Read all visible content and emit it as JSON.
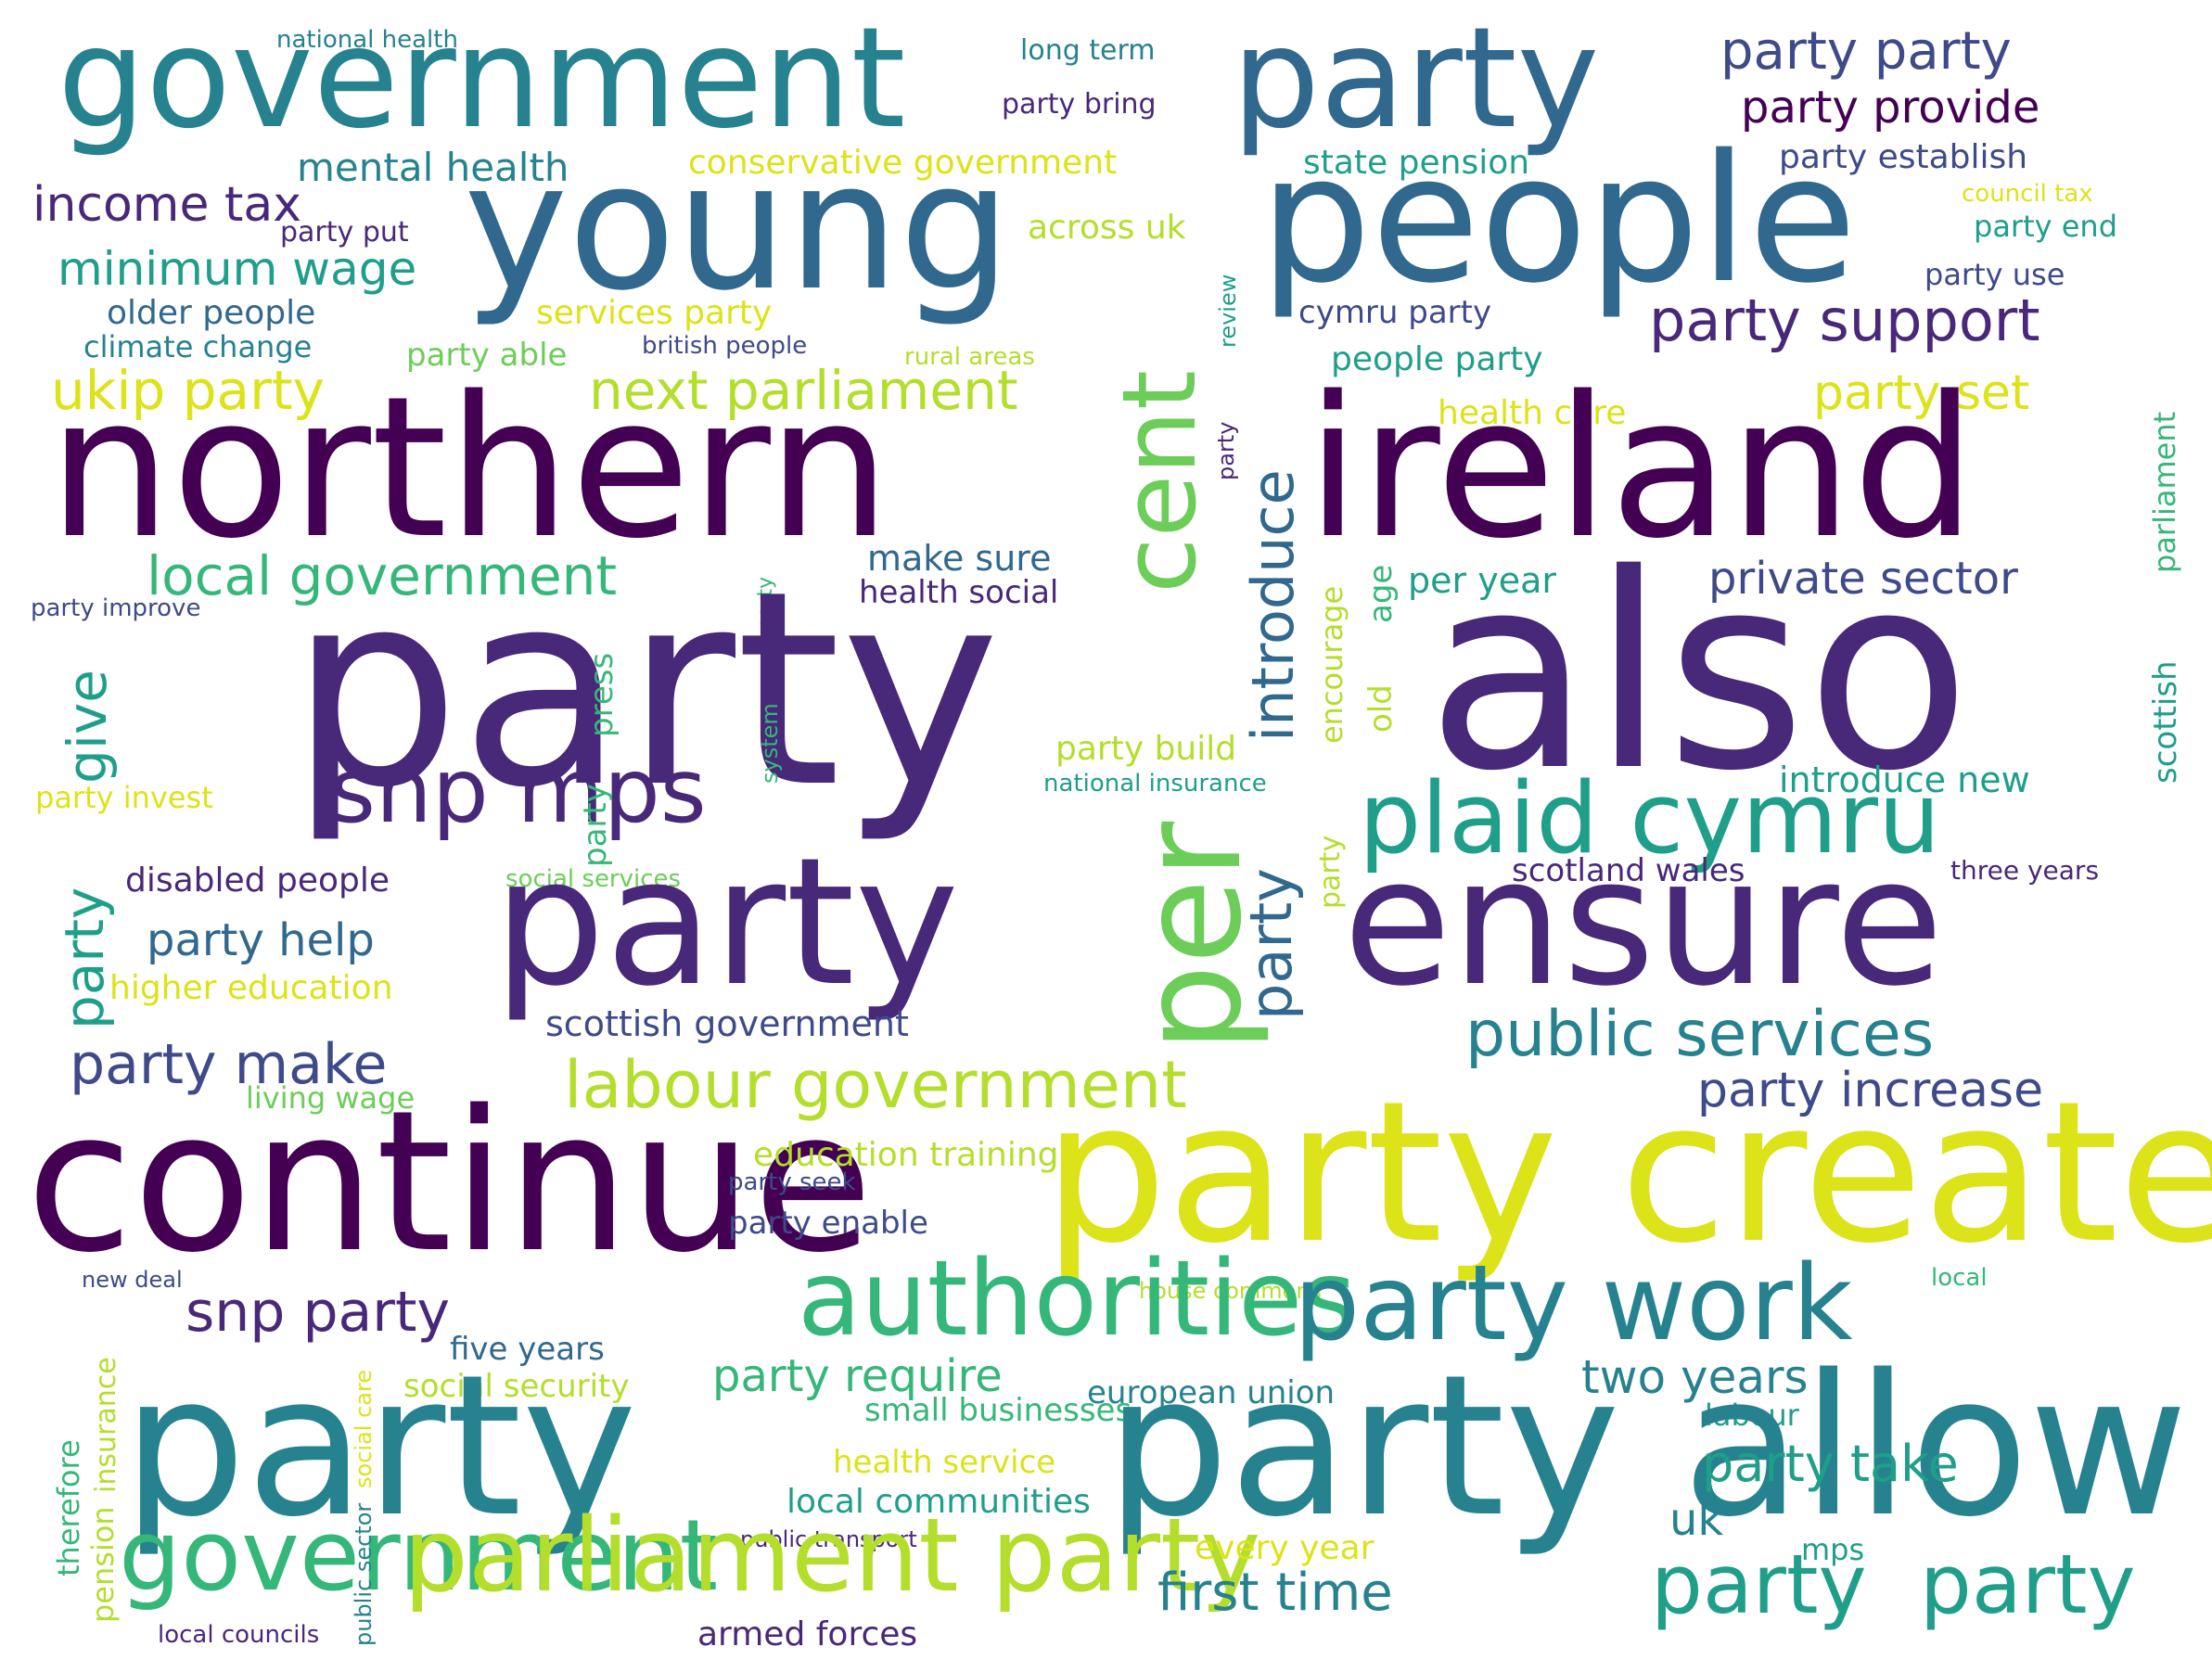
{
  "palette": {
    "c0": "#440154",
    "c1": "#482878",
    "c2": "#3e4a89",
    "c3": "#31688e",
    "c4": "#26828e",
    "c5": "#1f9e89",
    "c6": "#35b779",
    "c7": "#6dcd59",
    "c8": "#b4de2c",
    "c9": "#dce319"
  },
  "words": [
    {
      "id": "w1",
      "text": "national health",
      "color": "c4"
    },
    {
      "id": "w2",
      "text": "government",
      "color": "c4"
    },
    {
      "id": "w3",
      "text": "long term",
      "color": "c4"
    },
    {
      "id": "w4",
      "text": "party",
      "color": "c3"
    },
    {
      "id": "w5",
      "text": "party party",
      "color": "c2"
    },
    {
      "id": "w6",
      "text": "party bring",
      "color": "c1"
    },
    {
      "id": "w7",
      "text": "party provide",
      "color": "c0"
    },
    {
      "id": "w8",
      "text": "young",
      "color": "c3"
    },
    {
      "id": "w9",
      "text": "people",
      "color": "c3"
    },
    {
      "id": "w10",
      "text": "mental health",
      "color": "c4"
    },
    {
      "id": "w11",
      "text": "conservative government",
      "color": "c9"
    },
    {
      "id": "w12",
      "text": "state pension",
      "color": "c5"
    },
    {
      "id": "w13",
      "text": "party establish",
      "color": "c2"
    },
    {
      "id": "w14",
      "text": "income tax",
      "color": "c1"
    },
    {
      "id": "w15",
      "text": "party put",
      "color": "c1"
    },
    {
      "id": "w16",
      "text": "council tax",
      "color": "c9"
    },
    {
      "id": "w17",
      "text": "across uk",
      "color": "c8"
    },
    {
      "id": "w18",
      "text": "party end",
      "color": "c5"
    },
    {
      "id": "w19",
      "text": "minimum wage",
      "color": "c5"
    },
    {
      "id": "w20",
      "text": "cent",
      "color": "c7"
    },
    {
      "id": "w21",
      "text": "review",
      "color": "c5"
    },
    {
      "id": "w22",
      "text": "party use",
      "color": "c2"
    },
    {
      "id": "w23",
      "text": "older people",
      "color": "c3"
    },
    {
      "id": "w24",
      "text": "services party",
      "color": "c9"
    },
    {
      "id": "w25",
      "text": "cymru party",
      "color": "c2"
    },
    {
      "id": "w26",
      "text": "party support",
      "color": "c1"
    },
    {
      "id": "w27",
      "text": "climate change",
      "color": "c4"
    },
    {
      "id": "w28",
      "text": "party able",
      "color": "c7"
    },
    {
      "id": "w29",
      "text": "british people",
      "color": "c2"
    },
    {
      "id": "w30",
      "text": "rural areas",
      "color": "c8"
    },
    {
      "id": "w31",
      "text": "people party",
      "color": "c5"
    },
    {
      "id": "w32",
      "text": "ukip party",
      "color": "c9"
    },
    {
      "id": "w33",
      "text": "next parliament",
      "color": "c8"
    },
    {
      "id": "w34",
      "text": "introduce",
      "color": "c3"
    },
    {
      "id": "w35",
      "text": "party",
      "color": "c1"
    },
    {
      "id": "w36",
      "text": "party set",
      "color": "c9"
    },
    {
      "id": "w37",
      "text": "parliament",
      "color": "c6"
    },
    {
      "id": "w38",
      "text": "health care",
      "color": "c9"
    },
    {
      "id": "w39",
      "text": "northern",
      "color": "c0"
    },
    {
      "id": "w40",
      "text": "ireland",
      "color": "c0"
    },
    {
      "id": "w41",
      "text": "local government",
      "color": "c6"
    },
    {
      "id": "w42",
      "text": "make sure",
      "color": "c3"
    },
    {
      "id": "w43",
      "text": "party",
      "color": "c6"
    },
    {
      "id": "w44",
      "text": "per year",
      "color": "c5"
    },
    {
      "id": "w45",
      "text": "private sector",
      "color": "c2"
    },
    {
      "id": "w46",
      "text": "party improve",
      "color": "c2"
    },
    {
      "id": "w47",
      "text": "health social",
      "color": "c1"
    },
    {
      "id": "w48",
      "text": "age",
      "color": "c6"
    },
    {
      "id": "w49",
      "text": "party",
      "color": "c1"
    },
    {
      "id": "w50",
      "text": "also",
      "color": "c1"
    },
    {
      "id": "w51",
      "text": "give",
      "color": "c5"
    },
    {
      "id": "w52",
      "text": "press",
      "color": "c6"
    },
    {
      "id": "w53",
      "text": "system",
      "color": "c6"
    },
    {
      "id": "w54",
      "text": "encourage",
      "color": "c8"
    },
    {
      "id": "w55",
      "text": "old",
      "color": "c8"
    },
    {
      "id": "w56",
      "text": "scottish",
      "color": "c5"
    },
    {
      "id": "w57",
      "text": "party build",
      "color": "c8"
    },
    {
      "id": "w58",
      "text": "snp mps",
      "color": "c1"
    },
    {
      "id": "w59",
      "text": "national insurance",
      "color": "c5"
    },
    {
      "id": "w60",
      "text": "introduce new",
      "color": "c5"
    },
    {
      "id": "w61",
      "text": "party invest",
      "color": "c9"
    },
    {
      "id": "w62",
      "text": "party",
      "color": "c6"
    },
    {
      "id": "w63",
      "text": "plaid cymru",
      "color": "c5"
    },
    {
      "id": "w64",
      "text": "party",
      "color": "c3"
    },
    {
      "id": "w65",
      "text": "party",
      "color": "c8"
    },
    {
      "id": "w66",
      "text": "per",
      "color": "c7"
    },
    {
      "id": "w67",
      "text": "scotland wales",
      "color": "c1"
    },
    {
      "id": "w68",
      "text": "disabled people",
      "color": "c1"
    },
    {
      "id": "w69",
      "text": "social services",
      "color": "c7"
    },
    {
      "id": "w70",
      "text": "three years",
      "color": "c1"
    },
    {
      "id": "w71",
      "text": "party",
      "color": "c1"
    },
    {
      "id": "w72",
      "text": "ensure",
      "color": "c1"
    },
    {
      "id": "w73",
      "text": "party",
      "color": "c5"
    },
    {
      "id": "w74",
      "text": "party help",
      "color": "c3"
    },
    {
      "id": "w75",
      "text": "higher education",
      "color": "c9"
    },
    {
      "id": "w76",
      "text": "scottish government",
      "color": "c2"
    },
    {
      "id": "w77",
      "text": "public services",
      "color": "c4"
    },
    {
      "id": "w78",
      "text": "party make",
      "color": "c2"
    },
    {
      "id": "w79",
      "text": "labour government",
      "color": "c8"
    },
    {
      "id": "w80",
      "text": "living wage",
      "color": "c7"
    },
    {
      "id": "w81",
      "text": "party increase",
      "color": "c2"
    },
    {
      "id": "w82",
      "text": "party",
      "color": "c0"
    },
    {
      "id": "w83",
      "text": "continue",
      "color": "c0"
    },
    {
      "id": "w84",
      "text": "party create",
      "color": "c9"
    },
    {
      "id": "w85",
      "text": "education training",
      "color": "c8"
    },
    {
      "id": "w86",
      "text": "party seek",
      "color": "c2"
    },
    {
      "id": "w87",
      "text": "party enable",
      "color": "c2"
    },
    {
      "id": "w88",
      "text": "new deal",
      "color": "c2"
    },
    {
      "id": "w89",
      "text": "house commons",
      "color": "c8"
    },
    {
      "id": "w90",
      "text": "local",
      "color": "c6"
    },
    {
      "id": "w91",
      "text": "authorities",
      "color": "c6"
    },
    {
      "id": "w92",
      "text": "party work",
      "color": "c4"
    },
    {
      "id": "w93",
      "text": "snp party",
      "color": "c1"
    },
    {
      "id": "w94",
      "text": "five years",
      "color": "c3"
    },
    {
      "id": "w95",
      "text": "therefore",
      "color": "c6"
    },
    {
      "id": "w96",
      "text": "insurance",
      "color": "c8"
    },
    {
      "id": "w97",
      "text": "social care",
      "color": "c9"
    },
    {
      "id": "w98",
      "text": "party require",
      "color": "c6"
    },
    {
      "id": "w99",
      "text": "social security",
      "color": "c8"
    },
    {
      "id": "w100",
      "text": "two years",
      "color": "c4"
    },
    {
      "id": "w101",
      "text": "small businesses",
      "color": "c6"
    },
    {
      "id": "w102",
      "text": "european union",
      "color": "c4"
    },
    {
      "id": "w103",
      "text": "labour",
      "color": "c5"
    },
    {
      "id": "w104",
      "text": "party",
      "color": "c4"
    },
    {
      "id": "w105",
      "text": "party allow",
      "color": "c4"
    },
    {
      "id": "w106",
      "text": "health service",
      "color": "c9"
    },
    {
      "id": "w107",
      "text": "party take",
      "color": "c5"
    },
    {
      "id": "w108",
      "text": "local communities",
      "color": "c5"
    },
    {
      "id": "w109",
      "text": "public transport",
      "color": "c1"
    },
    {
      "id": "w110",
      "text": "uk",
      "color": "c4"
    },
    {
      "id": "w111",
      "text": "government",
      "color": "c6"
    },
    {
      "id": "w112",
      "text": "parliament party",
      "color": "c8"
    },
    {
      "id": "w113",
      "text": "every year",
      "color": "c9"
    },
    {
      "id": "w114",
      "text": "mps",
      "color": "c5"
    },
    {
      "id": "w115",
      "text": "party",
      "color": "c5"
    },
    {
      "id": "w116",
      "text": "party",
      "color": "c5"
    },
    {
      "id": "w117",
      "text": "pension",
      "color": "c8"
    },
    {
      "id": "w118",
      "text": "public sector",
      "color": "c4"
    },
    {
      "id": "w119",
      "text": "first time",
      "color": "c4"
    },
    {
      "id": "w120",
      "text": "local councils",
      "color": "c1"
    },
    {
      "id": "w121",
      "text": "armed forces",
      "color": "c1"
    }
  ]
}
